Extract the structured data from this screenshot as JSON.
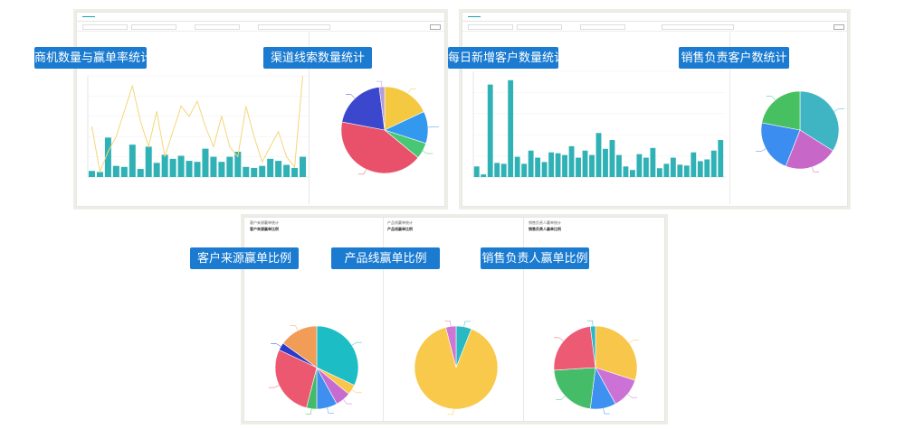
{
  "callouts": {
    "c1": "商机数量与赢单率统计",
    "c2": "渠道线索数量统计",
    "c3": "每日新增客户数量统计",
    "c4": "销售负责客户数统计",
    "c5": "客户来源赢单比例",
    "c6": "产品线赢单比例",
    "c7": "销售负责人赢单比例"
  },
  "bottom_panel": {
    "col1": {
      "small": "客户来源赢单统计",
      "title": "客户来源赢单比例"
    },
    "col2": {
      "small": "产品线赢单统计",
      "title": "产品线赢单比例"
    },
    "col3": {
      "small": "销售负责人赢单统计",
      "title": "销售负责人赢单比例"
    }
  },
  "colors": {
    "teal": "#2fb1b5",
    "line": "#f5d67a",
    "callout": "#1a7bd0"
  },
  "chart_data": [
    {
      "type": "bar",
      "id": "opportunities",
      "values": [
        6,
        5,
        39,
        11,
        10,
        32,
        8,
        30,
        14,
        22,
        18,
        21,
        16,
        15,
        28,
        20,
        15,
        20,
        25,
        10,
        9,
        11,
        18,
        16,
        12,
        9,
        20
      ],
      "line_values": [
        50,
        5,
        25,
        40,
        65,
        90,
        55,
        30,
        65,
        20,
        45,
        70,
        60,
        75,
        50,
        30,
        60,
        30,
        20,
        70,
        40,
        15,
        30,
        45,
        20,
        10,
        100
      ],
      "ylim": [
        0,
        100
      ]
    },
    {
      "type": "pie",
      "id": "channel_leads",
      "slices": [
        {
          "value": 18,
          "color": "#f5c842"
        },
        {
          "value": 12,
          "color": "#3399ee"
        },
        {
          "value": 6,
          "color": "#48c774"
        },
        {
          "value": 42,
          "color": "#e9506a"
        },
        {
          "value": 20,
          "color": "#3b47cc"
        },
        {
          "value": 2,
          "color": "#b39ddb"
        }
      ]
    },
    {
      "type": "bar",
      "id": "daily_new_customers",
      "values": [
        12,
        3,
        105,
        16,
        15,
        110,
        23,
        15,
        30,
        22,
        17,
        28,
        27,
        25,
        35,
        22,
        30,
        25,
        50,
        32,
        42,
        25,
        12,
        8,
        26,
        22,
        33,
        10,
        15,
        22,
        14,
        13,
        28,
        18,
        20,
        30,
        42
      ],
      "ylim": [
        0,
        120
      ]
    },
    {
      "type": "pie",
      "id": "sales_owner_customers",
      "slices": [
        {
          "value": 34,
          "color": "#3fb5c3"
        },
        {
          "value": 22,
          "color": "#c768c9"
        },
        {
          "value": 22,
          "color": "#3b8df0"
        },
        {
          "value": 22,
          "color": "#47c061"
        }
      ]
    },
    {
      "type": "pie",
      "id": "customer_source_win",
      "slices": [
        {
          "value": 32,
          "color": "#1dbdc5"
        },
        {
          "value": 4,
          "color": "#f8c64b"
        },
        {
          "value": 6,
          "color": "#c66bcf"
        },
        {
          "value": 8,
          "color": "#3e8ff0"
        },
        {
          "value": 4,
          "color": "#43bb6a"
        },
        {
          "value": 28,
          "color": "#eb5870"
        },
        {
          "value": 3,
          "color": "#2b3acb"
        },
        {
          "value": 15,
          "color": "#f29d57"
        }
      ]
    },
    {
      "type": "pie",
      "id": "product_line_win",
      "slices": [
        {
          "value": 6,
          "color": "#29b9c2"
        },
        {
          "value": 90,
          "color": "#f8c94a"
        },
        {
          "value": 4,
          "color": "#cc77d6"
        }
      ]
    },
    {
      "type": "pie",
      "id": "sales_owner_win",
      "slices": [
        {
          "value": 30,
          "color": "#f8c64b"
        },
        {
          "value": 12,
          "color": "#cc71d6"
        },
        {
          "value": 10,
          "color": "#3e91f0"
        },
        {
          "value": 22,
          "color": "#45bd68"
        },
        {
          "value": 24,
          "color": "#ec5a73"
        },
        {
          "value": 2,
          "color": "#2bb8c6"
        }
      ]
    }
  ]
}
